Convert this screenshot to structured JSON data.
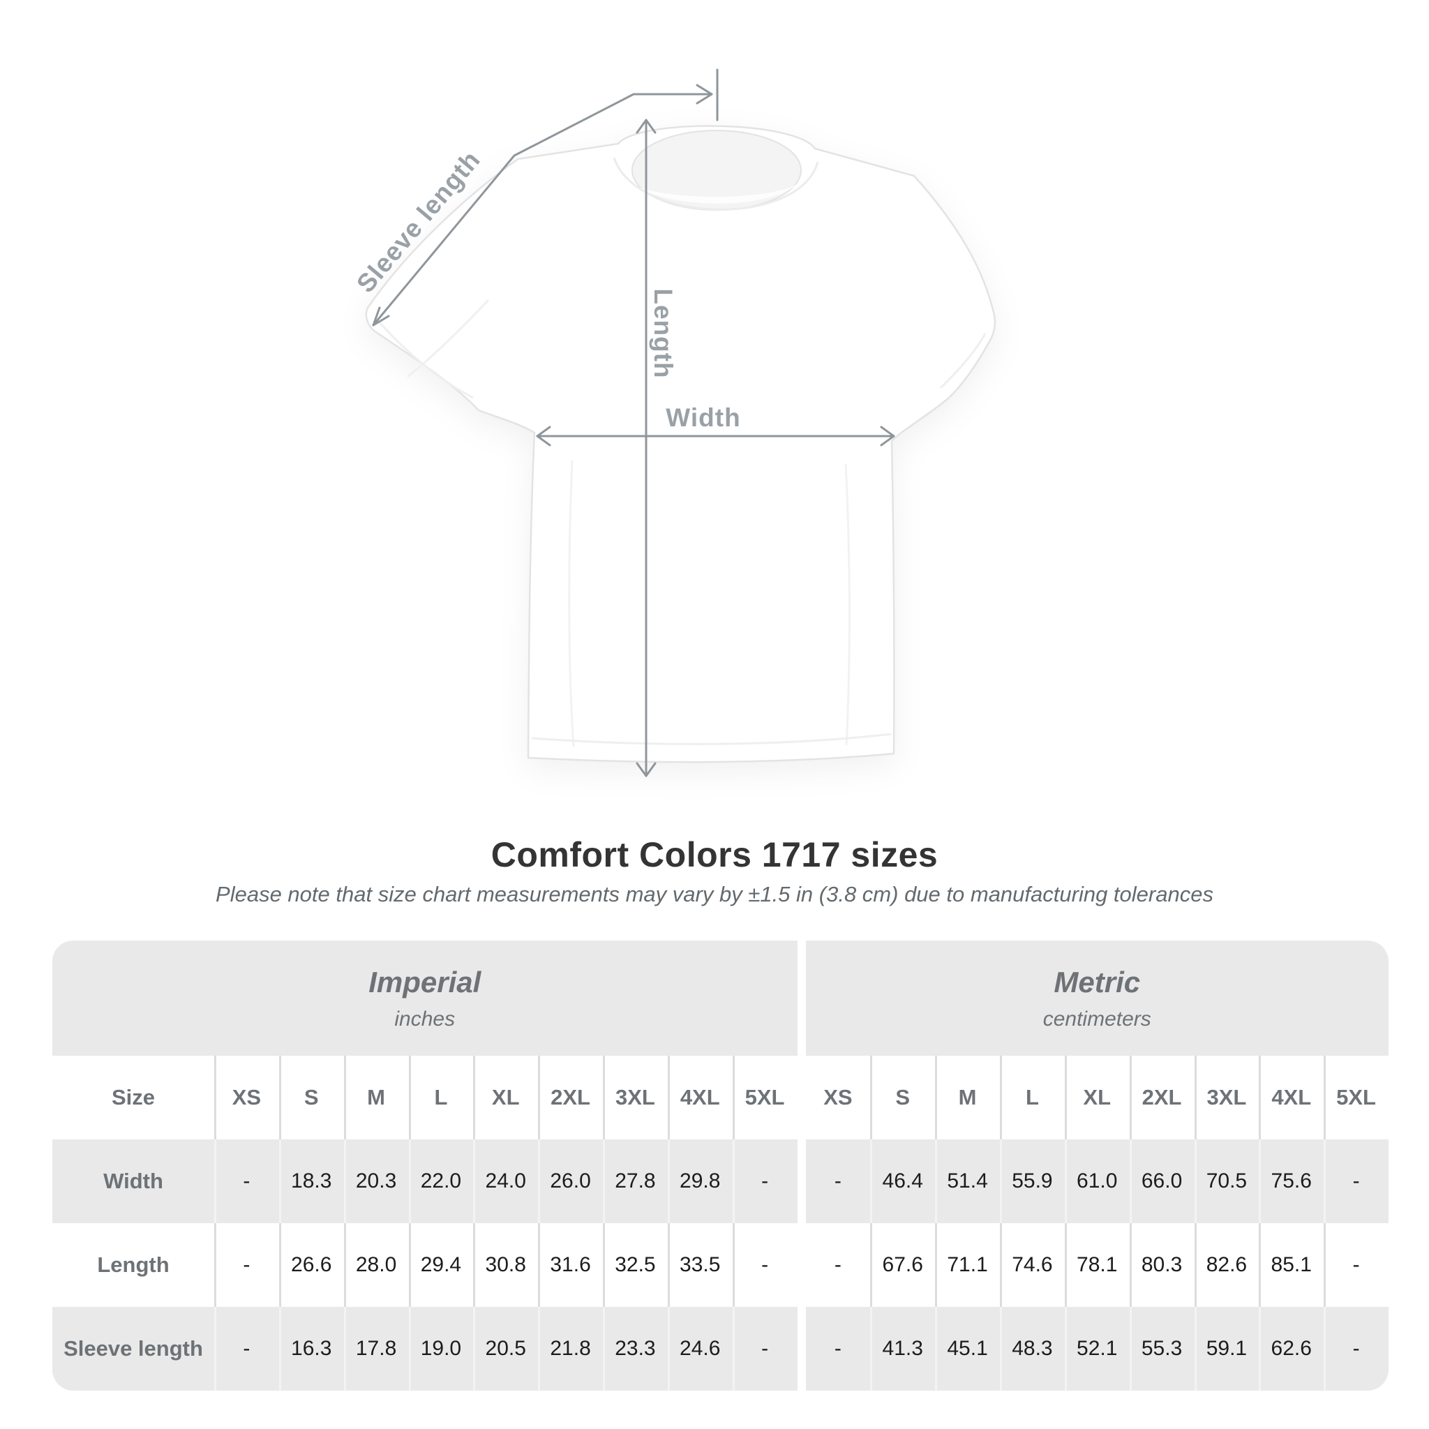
{
  "diagram": {
    "sleeve_label": "Sleeve length",
    "length_label": "Length",
    "width_label": "Width"
  },
  "title": "Comfort Colors 1717 sizes",
  "subtitle": "Please note that size chart measurements may vary by ±1.5 in (3.8 cm) due to manufacturing tolerances",
  "table": {
    "imperial": {
      "title": "Imperial",
      "unit": "inches"
    },
    "metric": {
      "title": "Metric",
      "unit": "centimeters"
    },
    "size_label": "Size",
    "sizes": [
      "XS",
      "S",
      "M",
      "L",
      "XL",
      "2XL",
      "3XL",
      "4XL",
      "5XL"
    ],
    "rows": [
      {
        "label": "Width",
        "imperial": [
          "-",
          "18.3",
          "20.3",
          "22.0",
          "24.0",
          "26.0",
          "27.8",
          "29.8",
          "-"
        ],
        "metric": [
          "-",
          "46.4",
          "51.4",
          "55.9",
          "61.0",
          "66.0",
          "70.5",
          "75.6",
          "-"
        ]
      },
      {
        "label": "Length",
        "imperial": [
          "-",
          "26.6",
          "28.0",
          "29.4",
          "30.8",
          "31.6",
          "32.5",
          "33.5",
          "-"
        ],
        "metric": [
          "-",
          "67.6",
          "71.1",
          "74.6",
          "78.1",
          "80.3",
          "82.6",
          "85.1",
          "-"
        ]
      },
      {
        "label": "Sleeve length",
        "imperial": [
          "-",
          "16.3",
          "17.8",
          "19.0",
          "20.5",
          "21.8",
          "23.3",
          "24.6",
          "-"
        ],
        "metric": [
          "-",
          "41.3",
          "45.1",
          "48.3",
          "52.1",
          "55.3",
          "59.1",
          "62.6",
          "-"
        ]
      }
    ]
  },
  "colors": {
    "row_stripe": "#e9e9e9",
    "value_text": "#1c1c1c",
    "label_text": "#6d7276",
    "measure_line": "#8f969b",
    "measure_label": "#9aa1a6"
  }
}
